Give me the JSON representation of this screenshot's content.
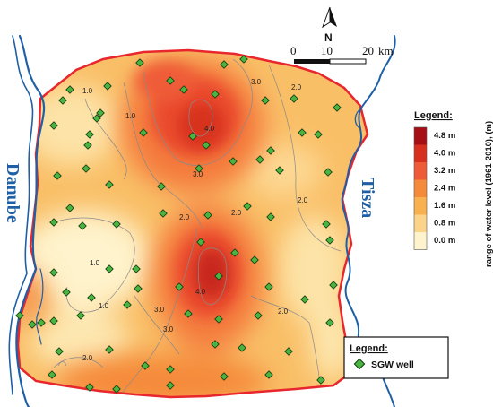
{
  "map": {
    "rivers": [
      {
        "name": "Danube",
        "color": "#1f5fa6"
      },
      {
        "name": "Tisza",
        "color": "#1f5fa6"
      }
    ],
    "boundary_color": "#e8262d",
    "well_color": "#49b43f",
    "contours": [
      "1.0",
      "1.0",
      "1.0",
      "1.0",
      "2.0",
      "2.0",
      "2.0",
      "2.0",
      "2.0",
      "3.0",
      "3.0",
      "3.0",
      "3.0",
      "4.0",
      "4.0",
      "2.0"
    ]
  },
  "north_arrow": {
    "label": "N"
  },
  "scale_bar": {
    "ticks": [
      "0",
      "10",
      "20"
    ],
    "unit": "km"
  },
  "color_legend": {
    "title": "Legend:",
    "axis_label": "range of  water level (1961-2010), (m)",
    "classes": [
      {
        "label": "4.8 m",
        "color": "#a50f15"
      },
      {
        "label": "4.0 m",
        "color": "#d7301f"
      },
      {
        "label": "3.2 m",
        "color": "#ef5b39"
      },
      {
        "label": "2.4 m",
        "color": "#f58a3b"
      },
      {
        "label": "1.6 m",
        "color": "#f9b14f"
      },
      {
        "label": "0.8 m",
        "color": "#fbd48a"
      },
      {
        "label": "0.0 m",
        "color": "#fef3cc"
      }
    ]
  },
  "symbol_legend": {
    "title": "Legend:",
    "items": [
      {
        "label": "SGW well",
        "symbol": "green-diamond"
      }
    ]
  }
}
